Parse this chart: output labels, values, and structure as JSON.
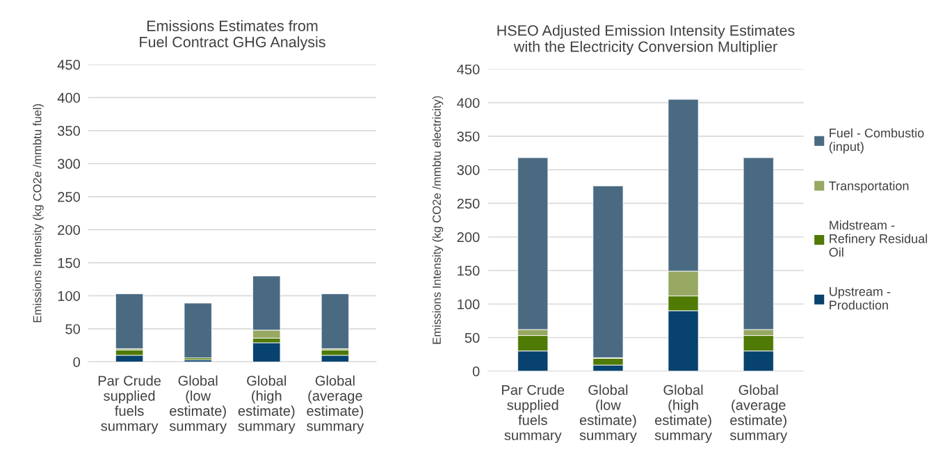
{
  "chart_data": [
    {
      "type": "bar",
      "stacked": true,
      "title": "Emissions Estimates from\nFuel Contract GHG Analysis",
      "ylabel": "Emissions Intensity (kg CO2e /mmbtu fuel)",
      "categories": [
        "Par Crude\nsupplied\nfuels\nsummary",
        "Global\n(low\nestimate)\nsummary",
        "Global\n(high\nestimate)\nsummary",
        "Global\n(average\nestimate)\nsummary"
      ],
      "series": [
        {
          "color": "#08426e",
          "values": [
            10,
            3,
            29,
            10
          ]
        },
        {
          "color": "#4f7a04",
          "values": [
            8,
            3,
            7,
            8
          ]
        },
        {
          "color": "#97a862",
          "values": [
            2,
            null,
            12,
            2
          ]
        },
        {
          "color": "#4a6a82",
          "values": [
            83,
            83,
            82,
            83
          ]
        }
      ],
      "ylim": [
        0,
        450
      ],
      "yticks": [
        0,
        50,
        100,
        150,
        200,
        250,
        300,
        350,
        400,
        450
      ],
      "grid": "y",
      "legend": false
    },
    {
      "type": "bar",
      "stacked": true,
      "title": "HSEO Adjusted Emission Intensity Estimates\nwith the Electricity Conversion Multiplier",
      "ylabel": "Emissions Intensity (kg CO2e /mmbtu electricity)",
      "categories": [
        "Par Crude\nsupplied\nfuels\nsummary",
        "Global\n(low\nestimate)\nsummary",
        "Global\n(high\nestimate)\nsummary",
        "Global\n(average\nestimate)\nsummary"
      ],
      "series": [
        {
          "name": "Upstream -\nProduction",
          "color": "#08426e",
          "values": [
            30,
            9,
            90,
            30
          ]
        },
        {
          "name": "Midstream -\nRefinery Residual\nOil",
          "color": "#4f7a04",
          "values": [
            23,
            10,
            22,
            23
          ]
        },
        {
          "name": "Transportation",
          "color": "#97a862",
          "values": [
            9,
            1,
            37,
            9
          ]
        },
        {
          "name": "Fuel - Combustio\n(input)",
          "color": "#4a6a82",
          "values": [
            256,
            256,
            256,
            256
          ]
        }
      ],
      "ylim": [
        0,
        450
      ],
      "yticks": [
        0,
        50,
        100,
        150,
        200,
        250,
        300,
        350,
        400,
        450
      ],
      "grid": "y",
      "legend": "right"
    }
  ]
}
